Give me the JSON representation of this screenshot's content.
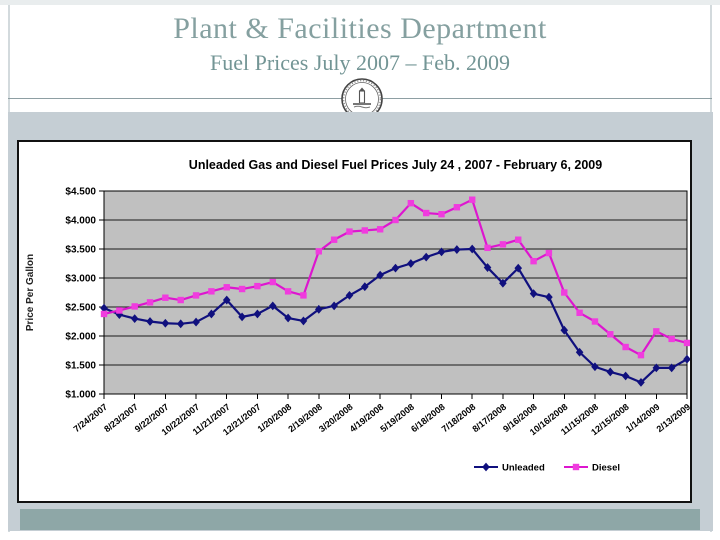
{
  "slide": {
    "title": "Plant & Facilities Department",
    "subtitle": "Fuel Prices July 2007 – Feb. 2009",
    "seal_icon": "city-seal",
    "colors": {
      "title_text": "#85a0a0",
      "subtitle_text": "#739595",
      "panel": "#c5ced4",
      "bottom_band": "#8ea7a7",
      "card_background": "#ffffff",
      "card_border": "#111111"
    }
  },
  "chart_data": {
    "type": "line",
    "title": "Unleaded Gas and Diesel Fuel Prices July 24 , 2007 - February 6, 2009",
    "xlabel": "",
    "ylabel": "Price Per Gallon",
    "ylim": [
      1.0,
      4.5
    ],
    "y_tick_labels": [
      "$4.500",
      "$4.000",
      "$3.500",
      "$3.000",
      "$2.500",
      "$2.000",
      "$1.500",
      "$1.000"
    ],
    "x_tick_labels": [
      "7/24/2007",
      "8/23/2007",
      "9/22/2007",
      "10/22/2007",
      "11/21/2007",
      "12/21/2007",
      "1/20/2008",
      "2/19/2008",
      "3/20/2008",
      "4/19/2008",
      "5/19/2008",
      "6/18/2008",
      "7/18/2008",
      "8/17/2008",
      "9/16/2008",
      "10/16/2008",
      "11/15/2008",
      "12/15/2008",
      "1/14/2009",
      "2/13/2009"
    ],
    "x_ticks_every_n_points": 2,
    "grid": true,
    "plot_bg": "#c0c0c0",
    "grid_color": "#1a1a1a",
    "legend_position": "bottom-right",
    "legend": [
      "Unleaded",
      "Diesel"
    ],
    "series": [
      {
        "name": "Unleaded",
        "color": "#10107e",
        "marker": "diamond",
        "values": [
          2.48,
          2.37,
          2.3,
          2.25,
          2.22,
          2.21,
          2.24,
          2.38,
          2.62,
          2.33,
          2.38,
          2.52,
          2.31,
          2.26,
          2.46,
          2.52,
          2.7,
          2.85,
          3.05,
          3.17,
          3.25,
          3.36,
          3.45,
          3.49,
          3.5,
          3.18,
          2.91,
          3.17,
          2.73,
          2.67,
          2.1,
          1.72,
          1.47,
          1.38,
          1.31,
          1.2,
          1.45,
          1.45,
          1.6
        ]
      },
      {
        "name": "Diesel",
        "color": "#dd16cf",
        "marker": "square",
        "marker_color": "#f03cde",
        "values": [
          2.38,
          2.44,
          2.51,
          2.58,
          2.66,
          2.62,
          2.7,
          2.77,
          2.84,
          2.81,
          2.86,
          2.93,
          2.77,
          2.7,
          3.46,
          3.66,
          3.8,
          3.82,
          3.84,
          4.0,
          4.29,
          4.12,
          4.1,
          4.22,
          4.35,
          3.52,
          3.58,
          3.66,
          3.29,
          3.43,
          2.75,
          2.4,
          2.25,
          2.03,
          1.81,
          1.67,
          2.08,
          1.95,
          1.88
        ]
      }
    ]
  }
}
